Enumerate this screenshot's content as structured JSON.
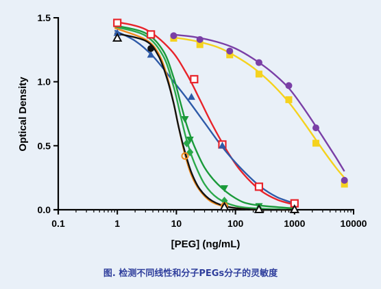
{
  "caption": "图. 检测不同线性和分子PEGs分子的灵敏度",
  "chart_data": {
    "type": "scatter",
    "title": "",
    "xlabel": "[PEG] (ng/mL)",
    "ylabel": "Optical Density",
    "x_scale": "log",
    "xlim": [
      0.1,
      10000
    ],
    "ylim": [
      0,
      1.5
    ],
    "x_ticks": [
      0.1,
      1,
      10,
      100,
      1000,
      10000
    ],
    "x_tick_labels": [
      "0.1",
      "1",
      "10",
      "100",
      "1000",
      "10000"
    ],
    "y_ticks": [
      0,
      0.5,
      1,
      1.5
    ],
    "y_tick_labels": [
      "0.0",
      "0.5",
      "1.0",
      "1.5"
    ],
    "grid": false,
    "legend": "none",
    "series": [
      {
        "color": "#e8232a",
        "marker": "square-open",
        "points": [
          [
            1,
            1.46
          ],
          [
            3.7,
            1.37
          ],
          [
            20,
            1.02
          ],
          [
            60,
            0.51
          ],
          [
            250,
            0.18
          ],
          [
            1000,
            0.05
          ]
        ],
        "curve": [
          [
            0.9,
            1.47
          ],
          [
            3,
            1.41
          ],
          [
            8,
            1.25
          ],
          [
            15,
            1.06
          ],
          [
            25,
            0.86
          ],
          [
            40,
            0.67
          ],
          [
            70,
            0.47
          ],
          [
            120,
            0.31
          ],
          [
            250,
            0.16
          ],
          [
            500,
            0.08
          ],
          [
            1000,
            0.04
          ]
        ]
      },
      {
        "color": "#2e5aa8",
        "marker": "triangle-up",
        "points": [
          [
            1,
            1.38
          ],
          [
            3.7,
            1.21
          ],
          [
            18,
            0.88
          ],
          [
            60,
            0.5
          ]
        ],
        "curve": [
          [
            0.9,
            1.4
          ],
          [
            2,
            1.32
          ],
          [
            4,
            1.2
          ],
          [
            8,
            1.03
          ],
          [
            15,
            0.87
          ],
          [
            30,
            0.68
          ],
          [
            60,
            0.49
          ],
          [
            120,
            0.33
          ],
          [
            250,
            0.19
          ],
          [
            500,
            0.1
          ],
          [
            1000,
            0.05
          ]
        ]
      },
      {
        "color": "#1a9a3a",
        "marker": "triangle-down",
        "points": [
          [
            14,
            0.71
          ],
          [
            17,
            0.55
          ],
          [
            65,
            0.17
          ],
          [
            250,
            0.03
          ]
        ],
        "curve": [
          [
            0.9,
            1.44
          ],
          [
            3,
            1.38
          ],
          [
            6,
            1.24
          ],
          [
            9,
            1.03
          ],
          [
            12,
            0.82
          ],
          [
            15,
            0.66
          ],
          [
            20,
            0.5
          ],
          [
            30,
            0.33
          ],
          [
            50,
            0.2
          ],
          [
            100,
            0.09
          ],
          [
            200,
            0.04
          ],
          [
            1000,
            0.01
          ]
        ]
      },
      {
        "color": "#2aa84a",
        "marker": "diamond",
        "points": [
          [
            15,
            0.52
          ],
          [
            17,
            0.45
          ],
          [
            65,
            0.07
          ],
          [
            250,
            0.01
          ]
        ],
        "curve": [
          [
            0.9,
            1.43
          ],
          [
            3,
            1.36
          ],
          [
            6,
            1.2
          ],
          [
            9,
            0.96
          ],
          [
            12,
            0.72
          ],
          [
            15,
            0.54
          ],
          [
            20,
            0.37
          ],
          [
            30,
            0.2
          ],
          [
            50,
            0.09
          ],
          [
            100,
            0.03
          ],
          [
            250,
            0.01
          ],
          [
            1000,
            0.0
          ]
        ]
      },
      {
        "color": "#f08a1c",
        "marker": "circle-open",
        "points": [
          [
            14,
            0.42
          ],
          [
            65,
            0.03
          ]
        ],
        "curve": [
          [
            0.9,
            1.42
          ],
          [
            3,
            1.33
          ],
          [
            5,
            1.22
          ],
          [
            7,
            1.04
          ],
          [
            9,
            0.83
          ],
          [
            11,
            0.64
          ],
          [
            14,
            0.43
          ],
          [
            18,
            0.27
          ],
          [
            25,
            0.15
          ],
          [
            40,
            0.06
          ],
          [
            80,
            0.02
          ],
          [
            250,
            0.0
          ],
          [
            1000,
            0.0
          ]
        ]
      },
      {
        "color": "#111111",
        "marker": "circle",
        "points": [
          [
            3.7,
            1.26
          ]
        ],
        "curve": [
          [
            0.9,
            1.38
          ],
          [
            3,
            1.32
          ],
          [
            5,
            1.2
          ],
          [
            7,
            1.02
          ],
          [
            9,
            0.83
          ],
          [
            11,
            0.64
          ],
          [
            14,
            0.45
          ],
          [
            18,
            0.29
          ],
          [
            25,
            0.16
          ],
          [
            40,
            0.07
          ],
          [
            80,
            0.02
          ],
          [
            250,
            0.0
          ],
          [
            1000,
            0.0
          ]
        ]
      },
      {
        "color": "#111111",
        "marker": "triangle-open",
        "points": [
          [
            1,
            1.34
          ],
          [
            65,
            0.02
          ],
          [
            250,
            0.0
          ],
          [
            1000,
            0.0
          ]
        ],
        "curve": []
      },
      {
        "color": "#f5d21e",
        "marker": "square",
        "points": [
          [
            9,
            1.34
          ],
          [
            25,
            1.29
          ],
          [
            80,
            1.21
          ],
          [
            250,
            1.06
          ],
          [
            800,
            0.86
          ],
          [
            2300,
            0.52
          ],
          [
            7000,
            0.2
          ]
        ],
        "curve": [
          [
            8,
            1.35
          ],
          [
            20,
            1.32
          ],
          [
            50,
            1.27
          ],
          [
            100,
            1.2
          ],
          [
            200,
            1.11
          ],
          [
            400,
            0.99
          ],
          [
            800,
            0.84
          ],
          [
            1500,
            0.67
          ],
          [
            3000,
            0.47
          ],
          [
            5000,
            0.33
          ],
          [
            7000,
            0.25
          ]
        ]
      },
      {
        "color": "#7a3fa6",
        "marker": "circle",
        "points": [
          [
            9,
            1.36
          ],
          [
            25,
            1.33
          ],
          [
            80,
            1.24
          ],
          [
            250,
            1.15
          ],
          [
            800,
            0.97
          ],
          [
            2300,
            0.64
          ],
          [
            7000,
            0.23
          ]
        ],
        "curve": [
          [
            8,
            1.37
          ],
          [
            20,
            1.35
          ],
          [
            50,
            1.31
          ],
          [
            100,
            1.26
          ],
          [
            200,
            1.18
          ],
          [
            400,
            1.08
          ],
          [
            800,
            0.95
          ],
          [
            1500,
            0.78
          ],
          [
            3000,
            0.57
          ],
          [
            5000,
            0.41
          ],
          [
            7000,
            0.3
          ]
        ]
      }
    ]
  }
}
